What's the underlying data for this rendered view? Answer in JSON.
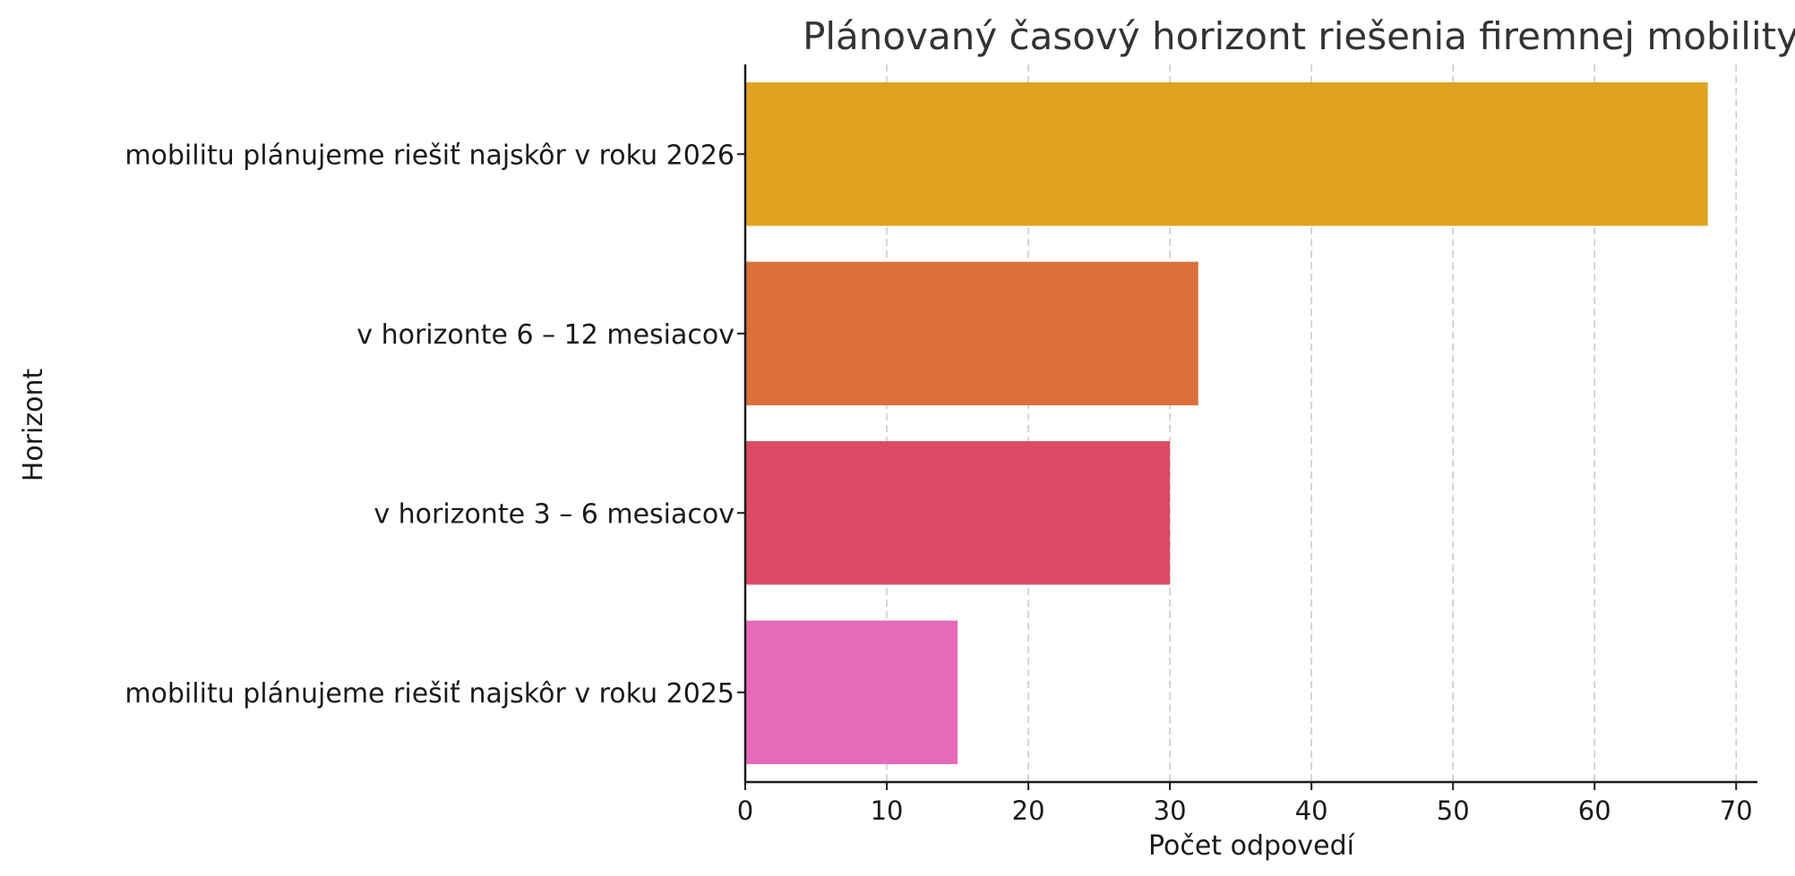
{
  "chart_data": {
    "type": "bar",
    "orientation": "horizontal",
    "title": "Plánovaný časový horizont riešenia firemnej mobility",
    "xlabel": "Počet odpovedí",
    "ylabel": "Horizont",
    "xlim": [
      0,
      71.5
    ],
    "xticks": [
      0,
      10,
      20,
      30,
      40,
      50,
      60,
      70
    ],
    "grid": "x-dashed",
    "categories": [
      "mobilitu plánujeme riešiť najskôr v roku 2026",
      "v horizonte 6 – 12 mesiacov",
      "v horizonte 3 – 6 mesiacov",
      "mobilitu plánujeme riešiť najskôr v roku 2025"
    ],
    "values": [
      68,
      32,
      30,
      15
    ],
    "colors": [
      "#DFA321",
      "#DA713A",
      "#DD4A66",
      "#E46ABA"
    ]
  }
}
